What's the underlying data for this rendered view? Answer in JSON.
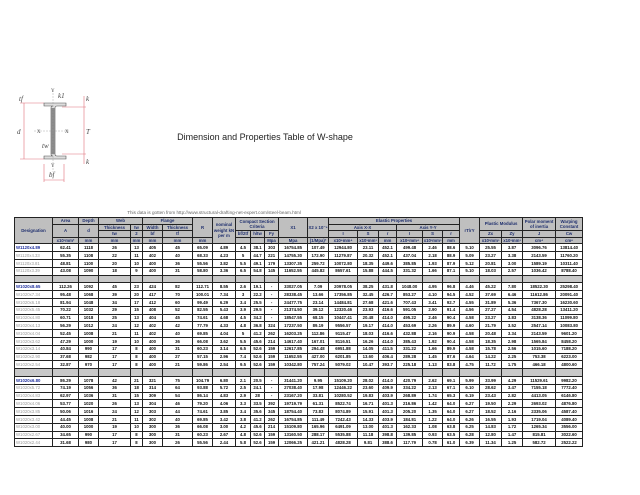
{
  "title": "Dimension and Properties Table of W-shape",
  "source_note": "This data is gotten from http://www.structural-drafting-net-expert.com/steel-beam.html",
  "diagram_labels": {
    "tf": "tf",
    "k1": "k1",
    "k_top": "k",
    "k_bottom": "k",
    "d": "d",
    "T": "T",
    "tw": "tw",
    "bf": "bf",
    "x": "X",
    "y": "Y"
  },
  "colors": {
    "header_bg": "#bfbfbf",
    "header_text": "#1f2f6e",
    "lead_designation": "#1f2f9e",
    "diagram": "#e0707a"
  },
  "header": {
    "designation": "Designation",
    "area": "Area",
    "depth": "Depth",
    "web": "Web",
    "flange": "Flange",
    "R": "R",
    "weight": "nominal weight kN per m",
    "compact": "Compact Section Criteria",
    "X1": "X1",
    "X2": "X2 x 10⁻⁶",
    "elastic": "Elastic Properties",
    "axis_xx": "Axis X-X",
    "axis_yy": "Axis Y-Y",
    "rt_ry": "rT/rY",
    "plastic": "Plastic Modulus",
    "polar": "Polar moment of inertia",
    "warping": "Warping Constant",
    "A": "A",
    "d": "d",
    "web_thickness": "Thickness",
    "web_tw": "tw",
    "web_2": "2",
    "web_tw2": "tw",
    "flange_width": "Width",
    "flange_thickness": "Thickness",
    "bf": "bf",
    "tf": "tf",
    "bf_2tf": "bf/2tf",
    "h_tw": "h/tw",
    "Fy": "Fy",
    "I": "I",
    "S": "S",
    "r": "r",
    "Zx": "Zx",
    "Zy": "Zy",
    "J": "J",
    "Cw": "Cw",
    "units": [
      "x10³mm²",
      "mm",
      "mm",
      "mm",
      "mm",
      "mm",
      "mm",
      "",
      "",
      "Mpa",
      "Mpa",
      "(1/Mpa)²",
      "x10⁶mm⁴",
      "x10³mm³",
      "mm",
      "x10⁶mm⁴",
      "x10³mm³",
      "mm",
      "x10³mm³",
      "x10³mm³",
      "cm⁴",
      "cm⁶"
    ]
  },
  "groups": [
    [
      [
        "W1120x4.89",
        "62.41",
        "1118",
        "26",
        "13",
        "405",
        "45",
        "65.09",
        "4.89",
        "4.5",
        "38.1",
        "303",
        "16754.85",
        "107.49",
        "12944.80",
        "23.11",
        "452.1",
        "499.48",
        "2.46",
        "88.6",
        "5.10",
        "25.55",
        "3.87",
        "3096.76",
        "13814.40"
      ],
      [
        "W1120x4.33",
        "55.35",
        "1108",
        "22",
        "11",
        "402",
        "40",
        "68.33",
        "4.23",
        "5",
        "44.7",
        "221",
        "14755.30",
        "172.90",
        "11279.87",
        "20.32",
        "452.1",
        "437.04",
        "2.18",
        "88.9",
        "5.09",
        "23.27",
        "3.38",
        "2143.59",
        "11760.20"
      ],
      [
        "W1120x3.81",
        "48.81",
        "1100",
        "20",
        "10",
        "400",
        "36",
        "55.56",
        "3.82",
        "5.5",
        "49.1",
        "179",
        "13307.35",
        "259.72",
        "10072.80",
        "18.35",
        "449.6",
        "385.85",
        "1.93",
        "87.9",
        "5.12",
        "20.81",
        "3.00",
        "1589.19",
        "10311.40"
      ],
      [
        "W1120x3.39",
        "43.08",
        "1090",
        "18",
        "9",
        "400",
        "31",
        "58.80",
        "3.36",
        "6.5",
        "54.8",
        "145",
        "11652.55",
        "445.82",
        "8657.61",
        "15.88",
        "444.5",
        "331.32",
        "1.66",
        "87.1",
        "5.10",
        "18.03",
        "2.57",
        "1036.42",
        "8788.40"
      ]
    ],
    [
      [
        "W1020x8.65",
        "112.26",
        "1092",
        "45",
        "23",
        "424",
        "82",
        "112.71",
        "8.55",
        "2.6",
        "19.1",
        "-",
        "33027.05",
        "7.09",
        "20978.05",
        "38.25",
        "431.8",
        "1048.00",
        "4.95",
        "96.8",
        "4.46",
        "45.22",
        "7.80",
        "18522.30",
        "25298.40"
      ],
      [
        "W1020x7.34",
        "95.48",
        "1068",
        "39",
        "20",
        "417",
        "70",
        "100.01",
        "7.34",
        "3",
        "22.2",
        "-",
        "28338.45",
        "13.66",
        "17356.85",
        "32.45",
        "426.7",
        "853.27",
        "4.10",
        "94.5",
        "4.52",
        "37.69",
        "6.46",
        "11612.86",
        "20091.40"
      ],
      [
        "W1020x6.18",
        "81.94",
        "1048",
        "34",
        "17",
        "412",
        "60",
        "99.49",
        "6.29",
        "3.4",
        "25.5",
        "-",
        "24477.75",
        "23.14",
        "14484.81",
        "27.68",
        "421.6",
        "707.43",
        "3.41",
        "92.7",
        "4.55",
        "31.89",
        "5.36",
        "7367.30",
        "16230.60"
      ],
      [
        "W1020x5.45",
        "70.22",
        "1032",
        "29",
        "15",
        "408",
        "52",
        "82.55",
        "5.43",
        "3.9",
        "29.5",
        "-",
        "21374.50",
        "39.12",
        "12320.46",
        "23.93",
        "416.6",
        "591.05",
        "2.90",
        "91.4",
        "4.56",
        "27.27",
        "4.54",
        "4828.28",
        "13411.20"
      ],
      [
        "W1020x4.80",
        "60.71",
        "1018",
        "25",
        "13",
        "404",
        "45",
        "74.61",
        "4.68",
        "4.5",
        "34.2",
        "-",
        "18547.55",
        "68.15",
        "10447.41",
        "20.48",
        "414.0",
        "495.22",
        "2.46",
        "90.4",
        "4.58",
        "23.27",
        "3.83",
        "3138.36",
        "11099.80"
      ],
      [
        "W1020x4.13",
        "56.29",
        "1012",
        "24",
        "12",
        "402",
        "42",
        "77.79",
        "4.33",
        "4.8",
        "36.8",
        "324",
        "17237.50",
        "89.19",
        "9556.57",
        "19.17",
        "414.0",
        "453.69",
        "2.26",
        "89.9",
        "4.60",
        "21.79",
        "3.52",
        "2547.14",
        "10083.80"
      ],
      [
        "W1020x4.04",
        "52.45",
        "1008",
        "21",
        "11",
        "402",
        "40",
        "69.85",
        "4.04",
        "5",
        "41.2",
        "262",
        "16203.25",
        "112.86",
        "9115.47",
        "18.03",
        "416.6",
        "432.88",
        "2.16",
        "90.9",
        "4.58",
        "20.48",
        "3.34",
        "2143.59",
        "9601.20"
      ],
      [
        "W1020x3.62",
        "47.29",
        "1000",
        "19",
        "10",
        "400",
        "36",
        "66.08",
        "3.62",
        "5.5",
        "45.6",
        "214",
        "14617.40",
        "167.01",
        "8116.51",
        "16.26",
        "414.0",
        "385.43",
        "1.92",
        "90.4",
        "4.58",
        "18.35",
        "2.98",
        "1565.84",
        "8458.20"
      ],
      [
        "W1020x3.14",
        "40.84",
        "990",
        "17",
        "8",
        "400",
        "31",
        "60.23",
        "3.14",
        "6.5",
        "52.6",
        "159",
        "12617.85",
        "294.48",
        "6951.88",
        "14.05",
        "411.5",
        "331.22",
        "1.66",
        "89.9",
        "4.58",
        "15.78",
        "2.56",
        "1015.60",
        "7188.20"
      ],
      [
        "W1020x2.90",
        "37.68",
        "982",
        "17",
        "8",
        "400",
        "27",
        "57.15",
        "2.96",
        "7.4",
        "52.6",
        "159",
        "11652.55",
        "427.00",
        "6201.85",
        "13.60",
        "406.4",
        "289.28",
        "1.45",
        "87.6",
        "4.64",
        "14.22",
        "2.25",
        "753.38",
        "6223.00"
      ],
      [
        "W1020x2.54",
        "32.87",
        "970",
        "17",
        "8",
        "400",
        "21",
        "59.86",
        "2.54",
        "9.5",
        "52.6",
        "159",
        "10342.80",
        "757.24",
        "5079.02",
        "10.47",
        "393.7",
        "225.18",
        "1.13",
        "83.8",
        "4.75",
        "11.72",
        "1.75",
        "466.18",
        "4800.60"
      ]
    ],
    [
      [
        "W1020x6.80",
        "86.29",
        "1078",
        "42",
        "21",
        "321",
        "75",
        "104.79",
        "6.80",
        "2.1",
        "20.5",
        "-",
        "31441.20",
        "9.95",
        "15109.20",
        "28.02",
        "414.0",
        "420.79",
        "2.62",
        "69.1",
        "5.99",
        "33.99",
        "4.29",
        "11529.61",
        "9982.20"
      ],
      [
        "W1020x5.72",
        "74.19",
        "1056",
        "36",
        "18",
        "314",
        "64",
        "93.88",
        "5.72",
        "2.5",
        "24.1",
        "-",
        "27038.40",
        "17.98",
        "12446.22",
        "23.60",
        "409.9",
        "334.22",
        "2.13",
        "67.1",
        "6.10",
        "28.62",
        "3.47",
        "7155.18",
        "7772.40"
      ],
      [
        "W1020x4.83",
        "62.97",
        "1036",
        "31",
        "15",
        "309",
        "54",
        "86.14",
        "4.83",
        "2.9",
        "28",
        "-",
        "23167.20",
        "33.81",
        "10280.52",
        "19.83",
        "403.9",
        "268.89",
        "1.74",
        "65.3",
        "6.19",
        "23.43",
        "2.82",
        "4413.05",
        "6146.80"
      ],
      [
        "W1020x4.06",
        "53.77",
        "1020",
        "26",
        "13",
        "304",
        "46",
        "79.20",
        "4.06",
        "3.3",
        "33.5",
        "392",
        "19719.79",
        "61.31",
        "8522.74",
        "16.71",
        "401.3",
        "216.86",
        "1.42",
        "64.0",
        "6.27",
        "19.50",
        "2.29",
        "2693.02",
        "4876.80"
      ],
      [
        "W1020x3.85",
        "50.06",
        "1016",
        "24",
        "12",
        "303",
        "44",
        "74.61",
        "3.85",
        "3.4",
        "35.6",
        "345",
        "18754.40",
        "73.83",
        "8074.89",
        "15.91",
        "401.3",
        "205.20",
        "1.35",
        "64.0",
        "6.27",
        "18.52",
        "2.16",
        "2335.06",
        "4587.40"
      ],
      [
        "W1020x3.42",
        "44.45",
        "1008",
        "21",
        "11",
        "302",
        "40",
        "69.85",
        "3.42",
        "3.8",
        "41.2",
        "262",
        "16754.85",
        "111.49",
        "7242.43",
        "14.33",
        "403.9",
        "184.81",
        "1.22",
        "64.0",
        "6.26",
        "16.55",
        "1.93",
        "1719.04",
        "4089.40"
      ],
      [
        "W1020x3.00",
        "40.00",
        "1000",
        "19",
        "10",
        "300",
        "36",
        "66.08",
        "3.00",
        "4.2",
        "45.6",
        "214",
        "15109.80",
        "165.96",
        "6491.09",
        "13.00",
        "401.3",
        "162.33",
        "1.08",
        "63.8",
        "6.25",
        "14.83",
        "1.72",
        "1265.34",
        "3556.00"
      ],
      [
        "W1020x2.67",
        "34.65",
        "990",
        "17",
        "8",
        "300",
        "31",
        "60.23",
        "2.67",
        "4.8",
        "52.6",
        "159",
        "13160.50",
        "288.17",
        "5535.88",
        "11.18",
        "398.8",
        "139.85",
        "0.93",
        "63.5",
        "6.28",
        "12.80",
        "1.47",
        "815.81",
        "3022.60"
      ],
      [
        "W1020x2.44",
        "31.68",
        "980",
        "17",
        "8",
        "300",
        "26",
        "55.56",
        "2.44",
        "5.8",
        "52.6",
        "159",
        "12066.25",
        "421.21",
        "4828.28",
        "9.81",
        "388.6",
        "117.79",
        "0.78",
        "61.0",
        "6.39",
        "11.34",
        "1.25",
        "582.72",
        "2522.22"
      ]
    ]
  ]
}
